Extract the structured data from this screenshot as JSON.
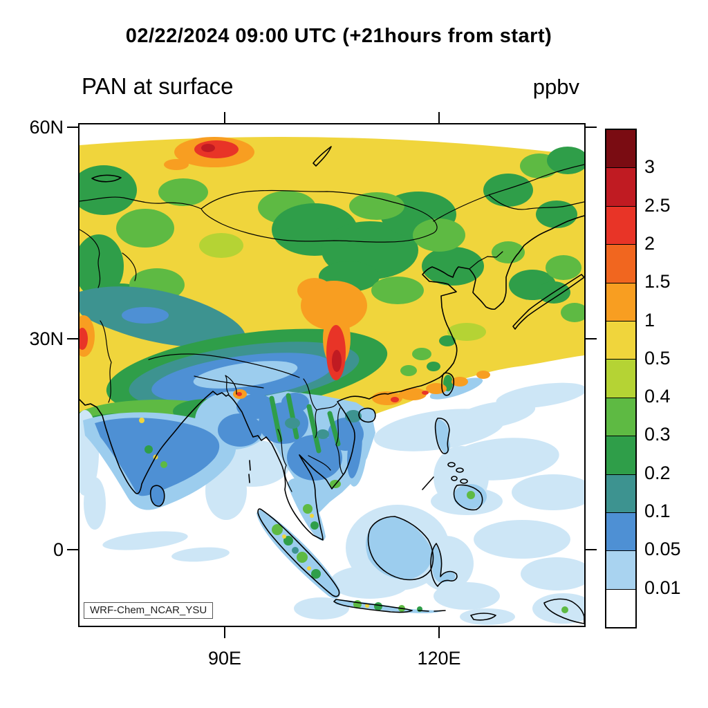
{
  "header": {
    "title": "02/22/2024 09:00 UTC (+21hours from start)",
    "subtitle_left": "PAN at surface",
    "units_label": "ppbv"
  },
  "map": {
    "model_label": "WRF-Chem_NCAR_YSU",
    "y_axis_labels": [
      "60N",
      "30N",
      "0"
    ],
    "x_axis_labels": [
      "90E",
      "120E"
    ]
  },
  "colorbar": {
    "levels": [
      "3",
      "2.5",
      "2",
      "1.5",
      "1",
      "0.5",
      "0.4",
      "0.3",
      "0.2",
      "0.1",
      "0.05",
      "0.01"
    ],
    "colors": [
      "#7a0c12",
      "#c01b22",
      "#e83427",
      "#f1661f",
      "#f89e21",
      "#f0d53c",
      "#b5d334",
      "#5eba43",
      "#2f9e49",
      "#3d9390",
      "#4e90d4",
      "#a9d3f0",
      "#ffffff"
    ]
  },
  "chart_data": {
    "type": "heatmap",
    "title": "02/22/2024 09:00 UTC (+21hours from start)",
    "subtitle": "PAN at surface",
    "units": "ppbv",
    "model_annotation": "WRF-Chem_NCAR_YSU",
    "x_axis": {
      "tick_labels": [
        "90E",
        "120E"
      ],
      "approx_range_deg_east": [
        70,
        140
      ]
    },
    "y_axis": {
      "tick_labels": [
        "60N",
        "30N",
        "0"
      ],
      "approx_range_deg_north": [
        -11,
        60
      ]
    },
    "contour_levels_ppbv": [
      0.01,
      0.05,
      0.1,
      0.2,
      0.3,
      0.4,
      0.5,
      1,
      1.5,
      2,
      2.5,
      3
    ],
    "palette_low_to_high": [
      "#ffffff",
      "#a9d3f0",
      "#4e90d4",
      "#3d9390",
      "#2f9e49",
      "#5eba43",
      "#b5d334",
      "#f0d53c",
      "#f89e21",
      "#f1661f",
      "#e83427",
      "#c01b22",
      "#7a0c12"
    ],
    "regions_depicted": [
      {
        "area": "Siberia / Mongolia / NE China (40-60N)",
        "value_ppbv": "0.5-1 yellow background with 0.3-0.5 green patches"
      },
      {
        "area": "hotspot near 55N, 92E (south Siberia)",
        "value_ppbv": "1.5-2.5"
      },
      {
        "area": "Sichuan-Yunnan-Guizhou hotspot ~24-33N, 104E",
        "value_ppbv": "1.5-3"
      },
      {
        "area": "SE China coast (Guangxi-Guangdong)",
        "value_ppbv": "1-1.5 orange patches on 0.5-1 yellow"
      },
      {
        "area": "Tibetan Plateau / Himalaya band",
        "value_ppbv": "0.05-0.3 (blue-teal)"
      },
      {
        "area": "NW India / Pakistan edge spot",
        "value_ppbv": "1-2"
      },
      {
        "area": "India peninsula",
        "value_ppbv": "0.05-0.1 blue"
      },
      {
        "area": "Indochina",
        "value_ppbv": "0.01-0.1 with 0.2-0.4 green mountain ridges"
      },
      {
        "area": "Maritime Continent and tropical ocean",
        "value_ppbv": "below 0.01-0.05, green spots 0.2-0.4 over Sumatra/Java"
      }
    ]
  }
}
